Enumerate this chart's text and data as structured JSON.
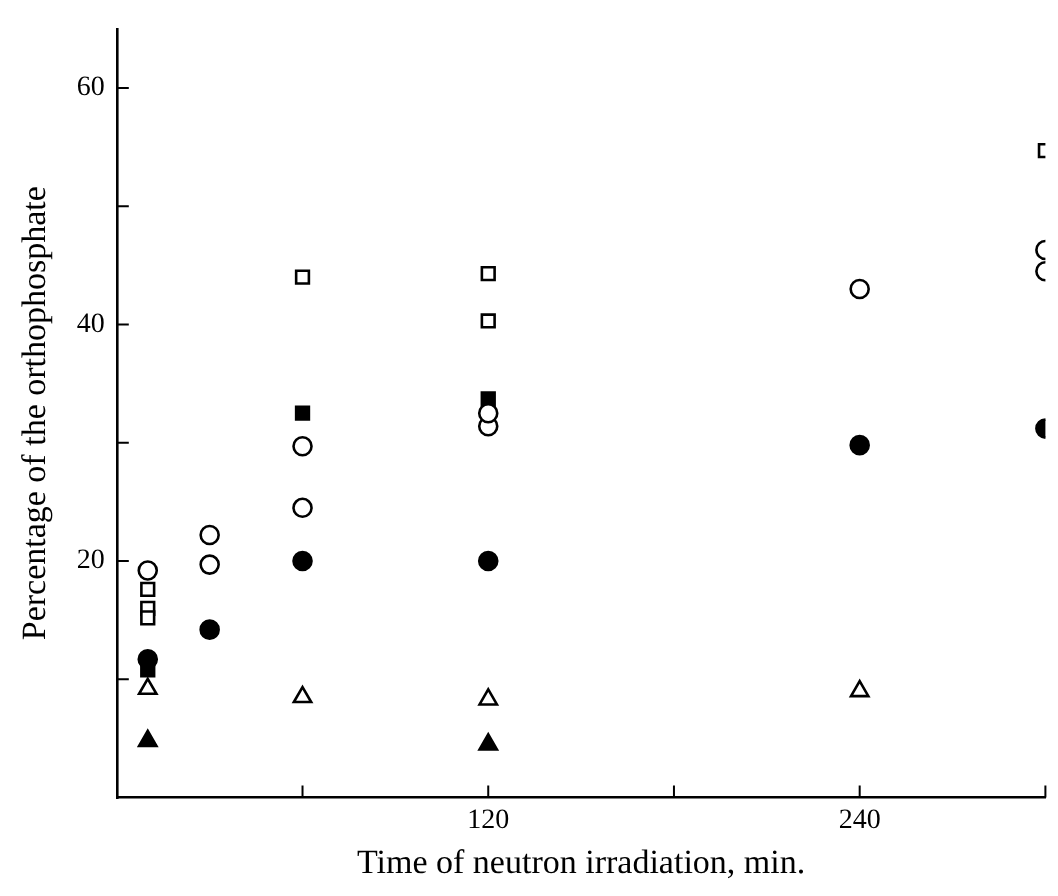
{
  "chart_data": {
    "type": "scatter",
    "xlabel": "Time of neutron irradiation, min.",
    "ylabel": "Percentage of the orthophosphate",
    "xlim": [
      0,
      300
    ],
    "xticks": [
      {
        "value": 60,
        "label": null
      },
      120,
      {
        "value": 180,
        "label": null
      },
      240,
      {
        "value": 300,
        "label": null
      }
    ],
    "ylim": [
      0,
      65
    ],
    "yticks": [
      {
        "value": 10,
        "label": null
      },
      20,
      {
        "value": 30,
        "label": null
      },
      40,
      {
        "value": 50,
        "label": null
      },
      60
    ],
    "grid": false,
    "legend": false,
    "series": [
      {
        "color": "#ffffff",
        "marker": "circle",
        "x": [
          10,
          30,
          60,
          120,
          240,
          300
        ],
        "values": [
          19.2,
          22.2,
          29.7,
          32.5,
          43,
          46.3
        ]
      },
      {
        "color": "#ffffff",
        "marker": "circle",
        "x": [
          30,
          60,
          120,
          300
        ],
        "values": [
          19.7,
          24.5,
          31.4,
          44.5
        ]
      },
      {
        "color": "#000000",
        "marker": "circle",
        "x": [
          10,
          30,
          60,
          120,
          240,
          300
        ],
        "values": [
          11.7,
          14.2,
          20,
          20,
          29.8,
          31.2
        ]
      },
      {
        "color": "#ffffff",
        "marker": "square",
        "x": [
          10,
          60,
          120,
          300
        ],
        "values": [
          17.6,
          44,
          44.3,
          54.7
        ]
      },
      {
        "color": "#ffffff",
        "marker": "square",
        "x": [
          10,
          10,
          120
        ],
        "values": [
          16,
          15.2,
          40.3
        ]
      },
      {
        "color": "#000000",
        "marker": "square",
        "x": [
          10,
          60,
          120
        ],
        "values": [
          10.8,
          32.5,
          33.7
        ]
      },
      {
        "color": "#ffffff",
        "marker": "triangle",
        "x": [
          10,
          60,
          120,
          240
        ],
        "values": [
          9.2,
          8.5,
          8.3,
          9
        ]
      },
      {
        "color": "#000000",
        "marker": "triangle",
        "x": [
          10,
          120
        ],
        "values": [
          4.8,
          4.5
        ]
      }
    ]
  }
}
